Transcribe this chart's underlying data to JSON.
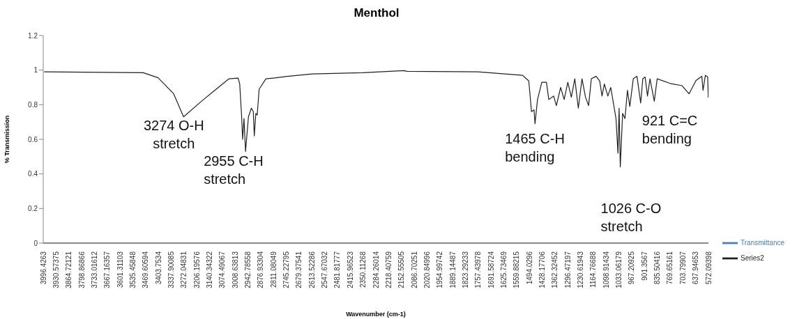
{
  "chart_data": {
    "type": "line",
    "title": "Menthol",
    "xlabel": "Wavenumber (cm-1)",
    "ylabel": "% Transmission",
    "xlim": [
      3996.4263,
      572.09398
    ],
    "xticks": [
      3996.4263,
      3930.57375,
      3864.72121,
      3798.86866,
      3733.01612,
      3667.16357,
      3601.31103,
      3535.45848,
      3469.60594,
      3403.7534,
      3337.90085,
      3272.04831,
      3206.19576,
      3140.34322,
      3074.49067,
      3008.63813,
      2942.78558,
      2876.93304,
      2811.08049,
      2745.22795,
      2679.37541,
      2613.52286,
      2547.67032,
      2481.81777,
      2415.96523,
      2350.11268,
      2284.26014,
      2218.40759,
      2152.55505,
      2086.70251,
      2020.84996,
      1954.99742,
      1889.14487,
      1823.29233,
      1757.43978,
      1691.58724,
      1625.73469,
      1559.88215,
      1494.0296,
      1428.17706,
      1362.32452,
      1296.47197,
      1230.61943,
      1164.76688,
      1098.91434,
      1033.06179,
      967.20925,
      901.3567,
      835.50416,
      769.65161,
      703.79907,
      637.94653,
      572.09398
    ],
    "ylim": [
      0,
      1.2
    ],
    "yticks": [
      0,
      0.2,
      0.4,
      0.6,
      0.8,
      1,
      1.2
    ],
    "grid": false,
    "legend": "right",
    "marker": "none",
    "series": [
      {
        "name": "Transmittance",
        "color": "#4a7ebb"
      },
      {
        "name": "Series2",
        "color": "#1f1f1f",
        "x": [
          3990,
          3482,
          3405,
          3325,
          3274,
          3182,
          3106,
          3040,
          2993,
          2985,
          2975,
          2970,
          2963,
          2955,
          2940,
          2925,
          2915,
          2910,
          2902,
          2895,
          2885,
          2850,
          2804,
          2740,
          2610,
          2350,
          2140,
          2124,
          1759,
          1529,
          1497,
          1483,
          1470,
          1465,
          1452,
          1430,
          1406,
          1394,
          1369,
          1355,
          1333,
          1315,
          1296,
          1278,
          1260,
          1242,
          1223,
          1205,
          1189,
          1175,
          1150,
          1132,
          1120,
          1108,
          1090,
          1075,
          1048,
          1038,
          1032,
          1026,
          1014,
          1002,
          989,
          977,
          959,
          940,
          921,
          910,
          898,
          886,
          873,
          851,
          836,
          769,
          708,
          672,
          636,
          606,
          600,
          588,
          576,
          573
        ],
        "values": [
          0.99,
          0.985,
          0.956,
          0.863,
          0.73,
          0.82,
          0.89,
          0.95,
          0.954,
          0.92,
          0.73,
          0.6,
          0.72,
          0.53,
          0.73,
          0.78,
          0.76,
          0.62,
          0.75,
          0.74,
          0.89,
          0.95,
          0.955,
          0.964,
          0.978,
          0.985,
          0.997,
          0.993,
          0.99,
          0.97,
          0.937,
          0.76,
          0.77,
          0.69,
          0.83,
          0.93,
          0.93,
          0.83,
          0.85,
          0.795,
          0.9,
          0.83,
          0.93,
          0.843,
          0.95,
          0.78,
          0.95,
          0.843,
          0.795,
          0.95,
          0.964,
          0.937,
          0.85,
          0.92,
          0.85,
          0.9,
          0.72,
          0.52,
          0.78,
          0.44,
          0.75,
          0.72,
          0.883,
          0.79,
          0.95,
          0.964,
          0.81,
          0.95,
          0.96,
          0.85,
          0.95,
          0.82,
          0.95,
          0.923,
          0.91,
          0.863,
          0.94,
          0.964,
          0.883,
          0.97,
          0.96,
          0.843
        ]
      }
    ],
    "annotations": [
      {
        "text": "3274 O-H stretch",
        "x": 3274,
        "y": 0.73
      },
      {
        "text": "2955 C-H stretch",
        "x": 2955,
        "y": 0.53
      },
      {
        "text": "1465 C-H bending",
        "x": 1465,
        "y": 0.69
      },
      {
        "text": "1026 C-O stretch",
        "x": 1026,
        "y": 0.44
      },
      {
        "text": "921 C=C bending",
        "x": 921,
        "y": 0.81
      }
    ]
  }
}
